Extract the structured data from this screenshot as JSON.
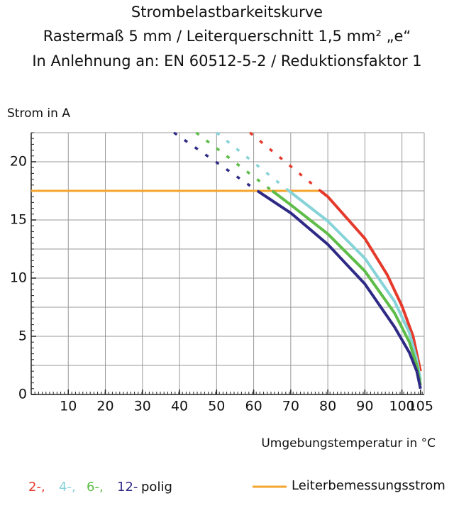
{
  "chart_data": {
    "type": "line",
    "title": [
      "Strombelastbarkeitskurve",
      "Rastermaß 5 mm / Leiterquerschnitt 1,5 mm² „e“",
      "In Anlehnung an: EN 60512-5-2 / Reduktionsfaktor 1"
    ],
    "y_label": "Strom in A",
    "x_label": "Umgebungstemperatur in °C",
    "xlim": [
      0,
      106
    ],
    "ylim": [
      0,
      22.5
    ],
    "xticks": [
      10,
      20,
      30,
      40,
      50,
      60,
      70,
      80,
      90,
      100,
      105
    ],
    "yticks": [
      0,
      5,
      10,
      15,
      20
    ],
    "grid": true,
    "xgrid_step": 10,
    "ygrid_step": 2.5,
    "legend_suffix": "polig",
    "series": [
      {
        "name": "2-,",
        "color": "#e53a2b",
        "x": [
          78,
          80,
          90,
          96,
          100,
          103,
          105
        ],
        "values": [
          17.5,
          17,
          13.4,
          10.3,
          7.6,
          5,
          2
        ],
        "extrapolated": {
          "x": [
            59,
            78
          ],
          "values": [
            22.5,
            17.5
          ]
        }
      },
      {
        "name": "4-,",
        "color": "#86d3d8",
        "x": [
          69.5,
          80,
          90,
          98,
          102,
          104,
          105
        ],
        "values": [
          17.5,
          14.9,
          11.7,
          8,
          5.3,
          3,
          1.2
        ],
        "extrapolated": {
          "x": [
            50,
            69.5
          ],
          "values": [
            22.5,
            17.5
          ]
        }
      },
      {
        "name": "6-,",
        "color": "#5dbd48",
        "x": [
          65,
          70,
          80,
          90,
          98,
          102,
          104,
          105
        ],
        "values": [
          17.5,
          16.3,
          13.8,
          10.6,
          7,
          4.5,
          2.5,
          0.8
        ],
        "extrapolated": {
          "x": [
            44.5,
            65
          ],
          "values": [
            22.5,
            17.5
          ]
        }
      },
      {
        "name": "12-",
        "color": "#2e2a86",
        "x": [
          61,
          70,
          80,
          90,
          98,
          102,
          104,
          105
        ],
        "values": [
          17.5,
          15.6,
          12.9,
          9.5,
          5.8,
          3.6,
          2,
          0.5
        ],
        "extrapolated": {
          "x": [
            38.5,
            61
          ],
          "values": [
            22.5,
            17.5
          ]
        }
      }
    ],
    "rated_current": {
      "name": "Leiterbemessungsstrom",
      "color": "#f4a52e",
      "x": [
        0,
        78
      ],
      "values": [
        17.5,
        17.5
      ]
    }
  }
}
